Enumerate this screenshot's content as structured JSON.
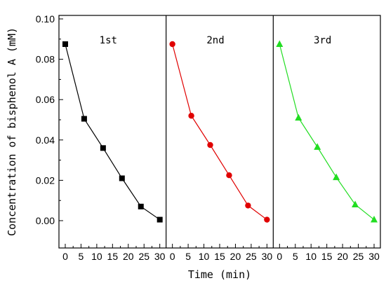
{
  "chart_data": {
    "type": "line",
    "xlabel": "Time (min)",
    "ylabel": "Concentration of bisphenol A (mM)",
    "ylim": [
      0.0,
      0.1
    ],
    "y_ticks": [
      "0.00",
      "0.02",
      "0.04",
      "0.06",
      "0.08",
      "0.10"
    ],
    "xlim": [
      -2,
      32
    ],
    "x_ticks": [
      "0",
      "5",
      "10",
      "15",
      "20",
      "25",
      "30"
    ],
    "grid": false,
    "panels": [
      {
        "label": "1st",
        "color": "#000000",
        "marker": "square",
        "x": [
          0,
          6,
          12,
          18,
          24,
          30
        ],
        "y": [
          0.0875,
          0.0505,
          0.036,
          0.021,
          0.007,
          0.0005
        ]
      },
      {
        "label": "2nd",
        "color": "#e00000",
        "marker": "circle",
        "x": [
          0,
          6,
          12,
          18,
          24,
          30
        ],
        "y": [
          0.0875,
          0.052,
          0.0375,
          0.0225,
          0.0075,
          0.0005
        ]
      },
      {
        "label": "3rd",
        "color": "#22dd22",
        "marker": "triangle",
        "x": [
          0,
          6,
          12,
          18,
          24,
          30
        ],
        "y": [
          0.0875,
          0.051,
          0.0365,
          0.0215,
          0.008,
          0.0005
        ]
      }
    ]
  }
}
